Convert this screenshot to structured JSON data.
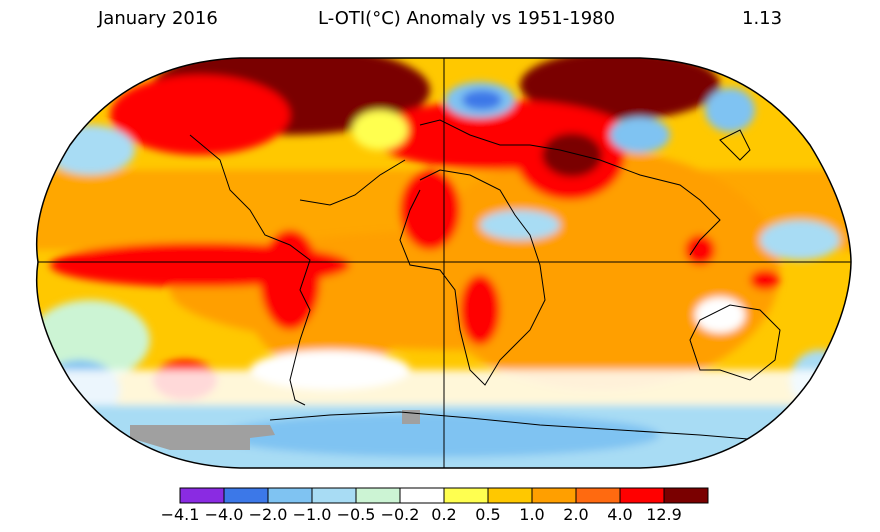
{
  "header": {
    "date": "January 2016",
    "title": "L-OTI(°C) Anomaly vs 1951-1980",
    "global_value": "1.13"
  },
  "legend": {
    "labels": [
      "−4.1",
      "−4.0",
      "−2.0",
      "−1.0",
      "−0.5",
      "−0.2",
      "0.2",
      "0.5",
      "1.0",
      "2.0",
      "4.0",
      "12.9"
    ],
    "colors": [
      "#8a2be2",
      "#3c78e8",
      "#7fc3f2",
      "#a8dcf4",
      "#ccf4d4",
      "#ffffff",
      "#ffff50",
      "#ffc800",
      "#ff9f00",
      "#ff6a10",
      "#ff0000",
      "#7a0000"
    ]
  },
  "map": {
    "projection": "Robinson",
    "colors": {
      "ocean_warm": "#ffc800",
      "orange": "#ff9f00",
      "deep_orange": "#ff6a10",
      "red": "#ff0000",
      "dark_red": "#7a0000",
      "light_blue": "#a8dcf4",
      "blue": "#7fc3f2",
      "mid_blue": "#3c78e8",
      "yellow": "#ffff50",
      "white": "#ffffff",
      "missing": "#a0a0a0",
      "grid_line": "#000000"
    }
  }
}
